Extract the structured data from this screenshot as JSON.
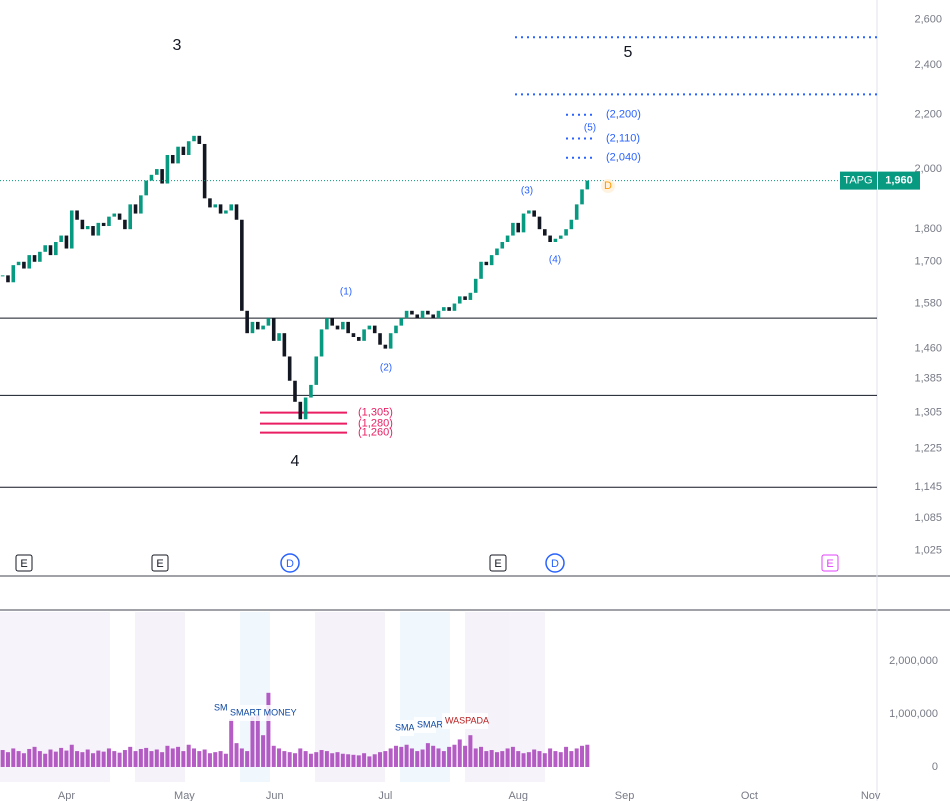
{
  "chart_data": {
    "type": "candlestick",
    "symbol": "TAPG",
    "last_value_label": "1,960",
    "last_value": 1960,
    "up_color": "#089981",
    "down_color": "#131722",
    "ylim": [
      980,
      2690
    ],
    "log_scale": true,
    "yticks": [
      {
        "value": 2600,
        "label": "2,600"
      },
      {
        "value": 2400,
        "label": "2,400"
      },
      {
        "value": 2200,
        "label": "2,200"
      },
      {
        "value": 2000,
        "label": "2,000"
      },
      {
        "value": 1800,
        "label": "1,800"
      },
      {
        "value": 1700,
        "label": "1,700"
      },
      {
        "value": 1580,
        "label": "1,580"
      },
      {
        "value": 1460,
        "label": "1,460"
      },
      {
        "value": 1385,
        "label": "1,385"
      },
      {
        "value": 1305,
        "label": "1,305"
      },
      {
        "value": 1225,
        "label": "1,225"
      },
      {
        "value": 1145,
        "label": "1,145"
      },
      {
        "value": 1085,
        "label": "1,085"
      },
      {
        "value": 1025,
        "label": "1,025"
      }
    ],
    "xlim": [
      -0.5,
      164.5
    ],
    "xticks": [
      {
        "value": 12,
        "label": "Apr"
      },
      {
        "value": 34.2,
        "label": "May"
      },
      {
        "value": 51.2,
        "label": "Jun"
      },
      {
        "value": 72,
        "label": "Jul"
      },
      {
        "value": 97,
        "label": "Aug"
      },
      {
        "value": 117,
        "label": "Sep"
      },
      {
        "value": 140.5,
        "label": "Oct"
      },
      {
        "value": 163.3,
        "label": "Nov"
      }
    ],
    "close": [
      1660,
      1640,
      1690,
      1700,
      1680,
      1720,
      1700,
      1730,
      1750,
      1720,
      1760,
      1780,
      1740,
      1860,
      1830,
      1800,
      1810,
      1780,
      1820,
      1810,
      1840,
      1850,
      1830,
      1800,
      1880,
      1850,
      1910,
      1960,
      1980,
      2000,
      1950,
      2050,
      2020,
      2080,
      2050,
      2100,
      2120,
      2090,
      1900,
      1870,
      1880,
      1850,
      1860,
      1880,
      1830,
      1560,
      1500,
      1530,
      1510,
      1520,
      1540,
      1480,
      1500,
      1440,
      1380,
      1330,
      1290,
      1340,
      1370,
      1440,
      1510,
      1540,
      1520,
      1510,
      1530,
      1500,
      1490,
      1480,
      1510,
      1520,
      1500,
      1470,
      1460,
      1500,
      1520,
      1540,
      1560,
      1550,
      1540,
      1560,
      1550,
      1540,
      1560,
      1570,
      1560,
      1580,
      1600,
      1590,
      1610,
      1650,
      1700,
      1690,
      1720,
      1740,
      1760,
      1780,
      1820,
      1790,
      1850,
      1860,
      1840,
      1800,
      1780,
      1760,
      1770,
      1780,
      1800,
      1830,
      1880,
      1930,
      1960
    ],
    "waves": [
      "3",
      "4",
      "5"
    ],
    "sub_waves": [
      "(1)",
      "(2)",
      "(3)",
      "(4)",
      "(5)"
    ],
    "support_lines": [
      1540,
      1345,
      1145
    ],
    "target_lines": [
      2520,
      2280
    ],
    "target_levels": [
      {
        "value": 2200,
        "label": "(2,200)"
      },
      {
        "value": 2110,
        "label": "(2,110)"
      },
      {
        "value": 2040,
        "label": "(2,040)"
      }
    ],
    "low_levels": [
      {
        "value": 1305,
        "label": "(1,305)"
      },
      {
        "value": 1280,
        "label": "(1,280)"
      },
      {
        "value": 1260,
        "label": "(1,260)"
      }
    ],
    "events": [
      "E",
      "E",
      "D",
      "E",
      "D",
      "E"
    ],
    "price_marker": "D",
    "volume": {
      "color": "#9c27b0",
      "ylim": [
        0,
        3000000
      ],
      "yticks": [
        {
          "value": 0,
          "label": "0"
        },
        {
          "value": 1000000,
          "label": "1,000,000"
        },
        {
          "value": 2000000,
          "label": "2,000,000"
        }
      ],
      "values": [
        320000,
        280000,
        350000,
        300000,
        260000,
        340000,
        380000,
        300000,
        250000,
        330000,
        290000,
        360000,
        310000,
        420000,
        300000,
        280000,
        330000,
        260000,
        310000,
        290000,
        350000,
        300000,
        270000,
        320000,
        380000,
        300000,
        340000,
        360000,
        300000,
        330000,
        280000,
        400000,
        350000,
        380000,
        300000,
        420000,
        350000,
        300000,
        330000,
        260000,
        280000,
        300000,
        250000,
        900000,
        450000,
        350000,
        300000,
        950000,
        1000000,
        600000,
        1400000,
        400000,
        350000,
        300000,
        280000,
        260000,
        350000,
        300000,
        250000,
        280000,
        320000,
        300000,
        260000,
        280000,
        250000,
        240000,
        230000,
        220000,
        260000,
        200000,
        240000,
        280000,
        300000,
        350000,
        400000,
        380000,
        420000,
        350000,
        300000,
        330000,
        450000,
        400000,
        350000,
        300000,
        380000,
        420000,
        520000,
        400000,
        600000,
        350000,
        380000,
        300000,
        320000,
        280000,
        300000,
        350000,
        380000,
        300000,
        260000,
        280000,
        330000,
        300000,
        260000,
        350000,
        300000,
        280000,
        380000,
        300000,
        350000,
        400000,
        420000
      ],
      "annotations": [
        "SM",
        "SMART MONEY",
        "SMA",
        "SMAR",
        "WASPADA"
      ]
    }
  }
}
